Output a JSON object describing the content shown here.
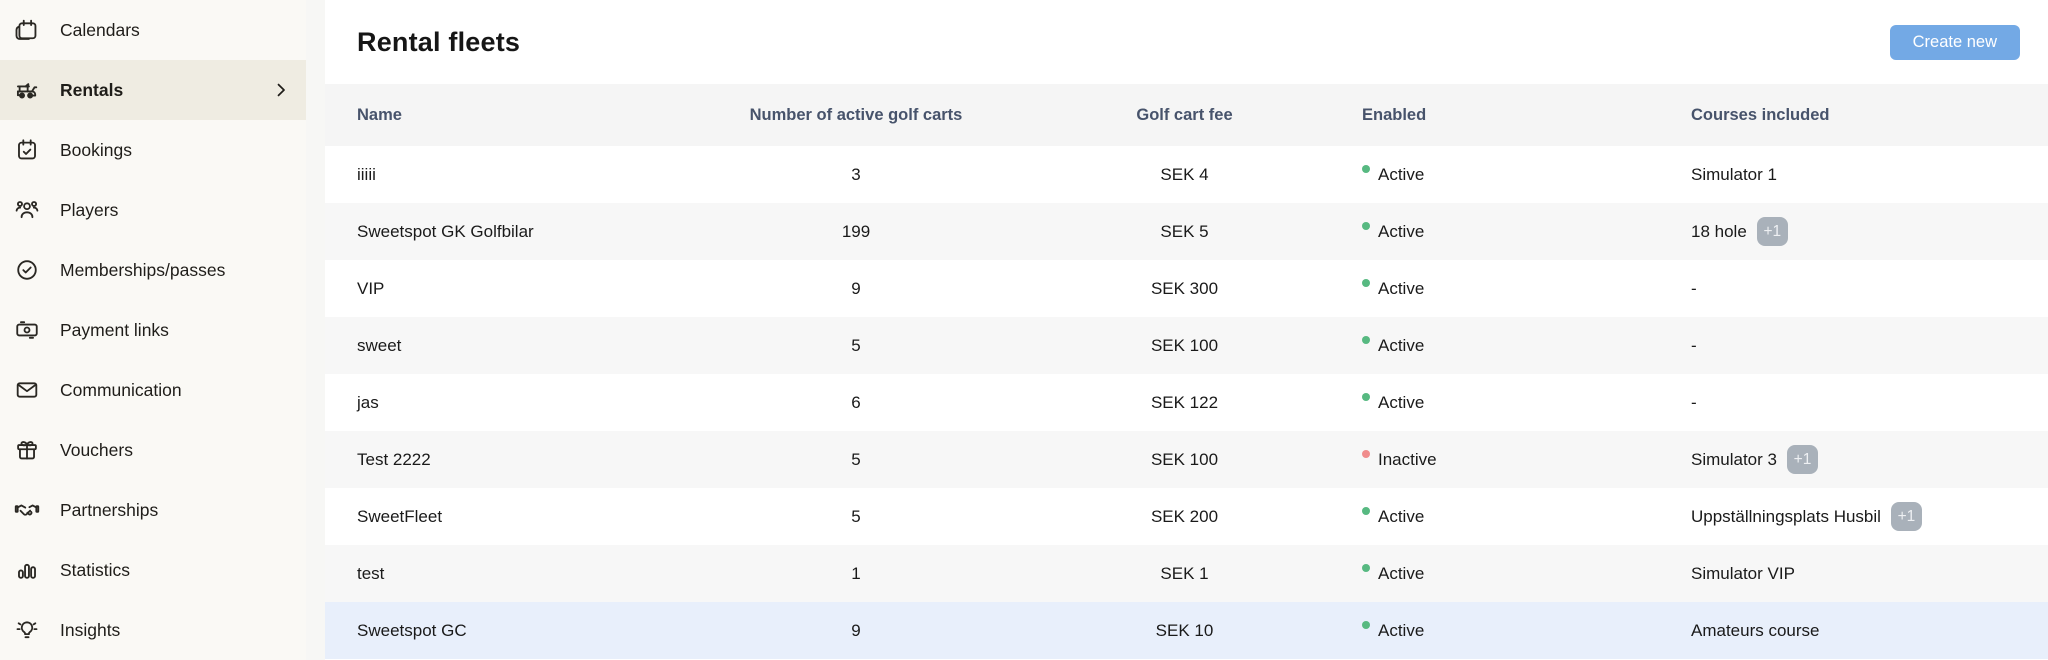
{
  "sidebar": {
    "items": [
      {
        "label": "Calendars",
        "icon": "calendar",
        "selected": false
      },
      {
        "label": "Rentals",
        "icon": "golf-cart",
        "selected": true
      },
      {
        "label": "Bookings",
        "icon": "calendar-check",
        "selected": false
      },
      {
        "label": "Players",
        "icon": "people",
        "selected": false
      },
      {
        "label": "Memberships/passes",
        "icon": "badge-check",
        "selected": false
      },
      {
        "label": "Payment links",
        "icon": "banknote",
        "selected": false
      },
      {
        "label": "Communication",
        "icon": "envelope",
        "selected": false
      },
      {
        "label": "Vouchers",
        "icon": "gift",
        "selected": false
      },
      {
        "label": "Partnerships",
        "icon": "handshake",
        "selected": false
      },
      {
        "label": "Statistics",
        "icon": "bar-chart",
        "selected": false
      },
      {
        "label": "Insights",
        "icon": "lightbulb",
        "selected": false
      }
    ]
  },
  "header": {
    "title": "Rental fleets",
    "create_button": "Create new"
  },
  "table": {
    "columns": [
      "Name",
      "Number of active golf carts",
      "Golf cart fee",
      "Enabled",
      "Courses included"
    ],
    "rows": [
      {
        "name": "iiiii",
        "carts": "3",
        "fee": "SEK 4",
        "status": "Active",
        "courses": "Simulator 1",
        "extra": "",
        "highlighted": false
      },
      {
        "name": "Sweetspot GK Golfbilar",
        "carts": "199",
        "fee": "SEK 5",
        "status": "Active",
        "courses": "18 hole",
        "extra": "+1",
        "highlighted": false
      },
      {
        "name": "VIP",
        "carts": "9",
        "fee": "SEK 300",
        "status": "Active",
        "courses": "-",
        "extra": "",
        "highlighted": false
      },
      {
        "name": "sweet",
        "carts": "5",
        "fee": "SEK 100",
        "status": "Active",
        "courses": "-",
        "extra": "",
        "highlighted": false
      },
      {
        "name": "jas",
        "carts": "6",
        "fee": "SEK 122",
        "status": "Active",
        "courses": "-",
        "extra": "",
        "highlighted": false
      },
      {
        "name": "Test 2222",
        "carts": "5",
        "fee": "SEK 100",
        "status": "Inactive",
        "courses": "Simulator 3",
        "extra": "+1",
        "highlighted": false
      },
      {
        "name": "SweetFleet",
        "carts": "5",
        "fee": "SEK 200",
        "status": "Active",
        "courses": "Uppställningsplats Husbil",
        "extra": "+1",
        "highlighted": false
      },
      {
        "name": "test",
        "carts": "1",
        "fee": "SEK 1",
        "status": "Active",
        "courses": "Simulator VIP",
        "extra": "",
        "highlighted": false
      },
      {
        "name": "Sweetspot GC",
        "carts": "9",
        "fee": "SEK 10",
        "status": "Active",
        "courses": "Amateurs course",
        "extra": "",
        "highlighted": true
      }
    ]
  },
  "colors": {
    "accent_blue": "#73a9e5",
    "active_green": "#57b981",
    "inactive_red": "#f08c8c",
    "badge_gray": "#a9b1ba",
    "row_highlight_blue": "#e8effb",
    "sidebar_bg": "#faf9f5",
    "sidebar_selected_bg": "#efece2",
    "table_header_text": "#47536b"
  }
}
